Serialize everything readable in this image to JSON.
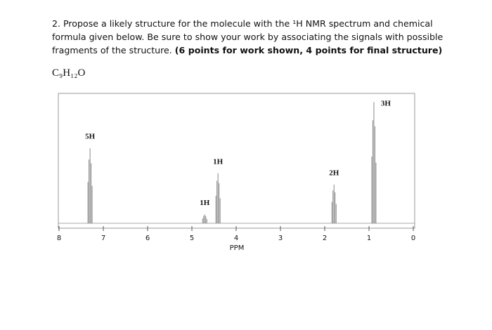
{
  "question": {
    "lines": [
      "2. Propose a likely structure for the molecule with the ¹H NMR spectrum and chemical",
      "formula given below. Be sure to show your work by associating the signals with possible",
      "fragments of the structure. "
    ],
    "points": "(6 points for work shown, 4 points for final structure)",
    "formula": "C₉H₁₂O"
  },
  "chart_data": {
    "type": "nmr",
    "xlabel": "PPM",
    "xlim": [
      8,
      0
    ],
    "xticks": [
      8,
      7,
      6,
      5,
      4,
      3,
      2,
      1,
      0
    ],
    "ylim": [
      0,
      100
    ],
    "color": "#888888",
    "series": [
      {
        "x": [
          7.3,
          4.71,
          4.41,
          1.79,
          0.89
        ],
        "values": [
          60,
          7,
          40,
          31,
          97
        ],
        "labels": [
          "5H",
          "1H",
          "1H",
          "2H",
          "3H"
        ]
      }
    ]
  }
}
